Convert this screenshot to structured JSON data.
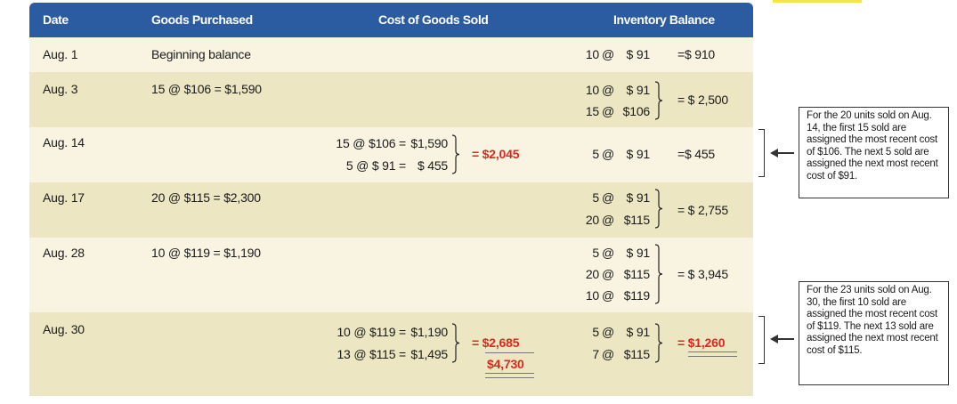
{
  "headers": {
    "date": "Date",
    "goods_purchased": "Goods Purchased",
    "cogs": "Cost of Goods Sold",
    "inventory_balance": "Inventory Balance"
  },
  "rows": [
    {
      "date": "Aug.  1",
      "purchased": "Beginning balance",
      "cogs_lines": [],
      "cogs_total": "",
      "inv_lines": [
        [
          "10",
          "$ 91"
        ]
      ],
      "inv_total": "=$  910"
    },
    {
      "date": "Aug.  3",
      "purchased": "15 @ $106 = $1,590",
      "cogs_lines": [],
      "cogs_total": "",
      "inv_lines": [
        [
          "10",
          "$ 91"
        ],
        [
          "15",
          "$106"
        ]
      ],
      "inv_total": "= $ 2,500"
    },
    {
      "date": "Aug. 14",
      "purchased": "",
      "cogs_lines": [
        [
          "15 @ $106 =",
          "$1,590"
        ],
        [
          "5 @ $  91 =",
          "$  455"
        ]
      ],
      "cogs_total": "= $2,045",
      "inv_lines": [
        [
          "5",
          "$ 91"
        ]
      ],
      "inv_total": "=$  455"
    },
    {
      "date": "Aug. 17",
      "purchased": "20 @ $115 = $2,300",
      "cogs_lines": [],
      "cogs_total": "",
      "inv_lines": [
        [
          "5",
          "$ 91"
        ],
        [
          "20",
          "$115"
        ]
      ],
      "inv_total": "= $ 2,755"
    },
    {
      "date": "Aug. 28",
      "purchased": "10 @ $119 = $1,190",
      "cogs_lines": [],
      "cogs_total": "",
      "inv_lines": [
        [
          "5",
          "$ 91"
        ],
        [
          "20",
          "$115"
        ],
        [
          "10",
          "$119"
        ]
      ],
      "inv_total": "= $ 3,945"
    },
    {
      "date": "Aug. 30",
      "purchased": "",
      "cogs_lines": [
        [
          "10 @ $119 =",
          "$1,190"
        ],
        [
          "13 @ $115 =",
          "$1,495"
        ]
      ],
      "cogs_total": "= $2,685",
      "inv_lines": [
        [
          "5",
          "$ 91"
        ],
        [
          "7",
          "$115"
        ]
      ],
      "inv_total": "= $1,260"
    }
  ],
  "grand_total": "$4,730",
  "callouts": {
    "aug14": "For the 20 units sold on Aug. 14, the first 15 sold are assigned the most recent cost of $106. The next 5 sold are assigned the next most recent cost of $91.",
    "aug30": "For the 23 units sold on Aug. 30, the first 10 sold are assigned the most recent cost of $119. The next 13 sold are assigned the next most recent cost of $115."
  },
  "colors": {
    "header": "#2b5ba0",
    "row_light": "#f8f4e1",
    "row_dark": "#ede6c3",
    "accent_red": "#d62a20"
  }
}
